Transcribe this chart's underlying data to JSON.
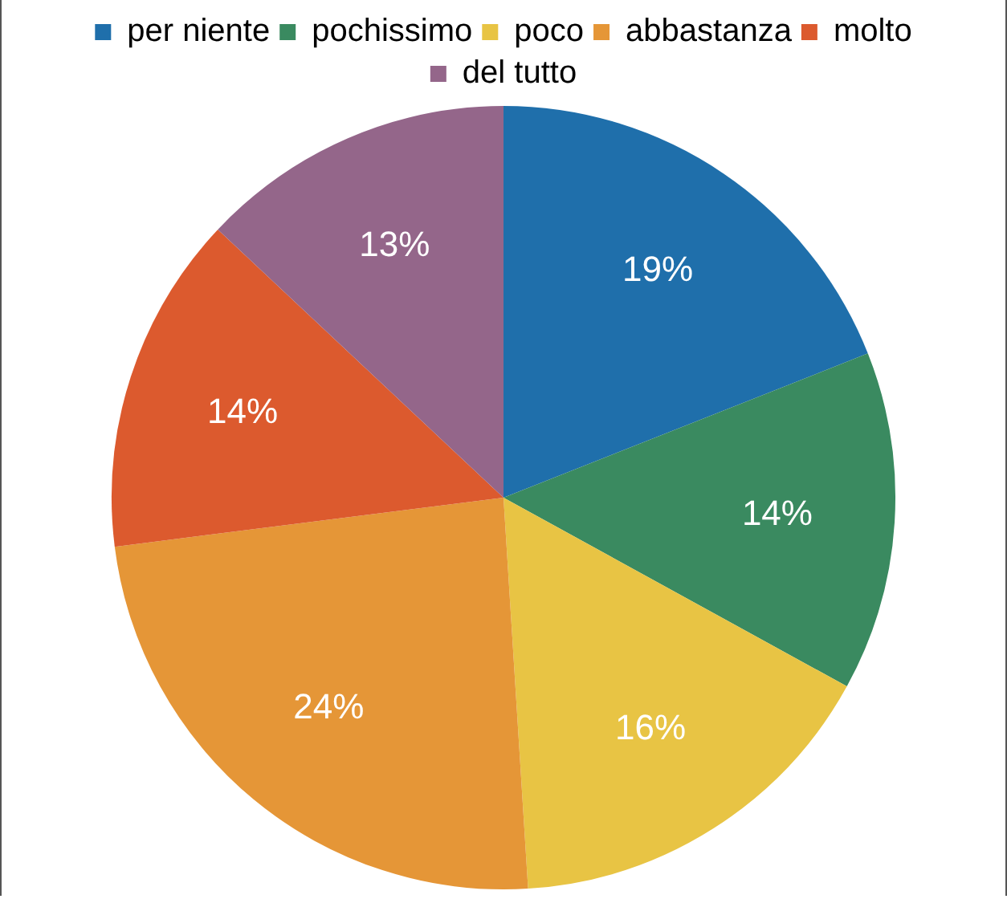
{
  "chart_data": {
    "type": "pie",
    "categories": [
      "per niente",
      "pochissimo",
      "poco",
      "abbastanza",
      "molto",
      "del tutto"
    ],
    "values": [
      19,
      14,
      16,
      24,
      14,
      13
    ],
    "colors": [
      "#1f6fab",
      "#3a8a60",
      "#e8c444",
      "#e59637",
      "#dc5a2e",
      "#94668a"
    ],
    "value_labels": [
      "19%",
      "14%",
      "16%",
      "24%",
      "14%",
      "13%"
    ],
    "legend": "top"
  }
}
